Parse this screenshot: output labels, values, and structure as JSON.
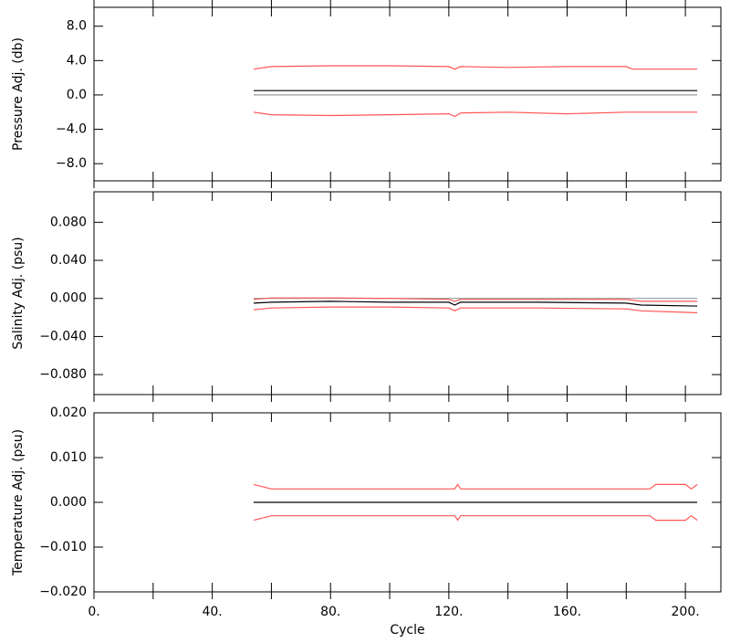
{
  "chart_data": [
    {
      "type": "line",
      "ylabel": "Pressure Adj. (db)",
      "xlim": [
        0,
        212
      ],
      "xticks": [
        0,
        20,
        40,
        60,
        80,
        100,
        120,
        140,
        160,
        180,
        200
      ],
      "ylim": [
        -10,
        10.2
      ],
      "yticks": [
        {
          "value": 8,
          "label": "8.0"
        },
        {
          "value": 4,
          "label": "4.0"
        },
        {
          "value": 0,
          "label": "0.0"
        },
        {
          "value": -4,
          "label": "−4.0"
        },
        {
          "value": -8,
          "label": "−8.0"
        }
      ],
      "x": [
        54,
        60,
        80,
        100,
        120,
        122,
        124,
        140,
        160,
        180,
        182,
        204
      ],
      "series": [
        {
          "color": "#999999",
          "values": [
            0,
            0,
            0,
            0,
            0,
            0,
            0,
            0,
            0,
            0,
            0,
            0
          ]
        },
        {
          "color": "#000000",
          "values": [
            0.5,
            0.5,
            0.5,
            0.5,
            0.5,
            0.5,
            0.5,
            0.5,
            0.5,
            0.5,
            0.5,
            0.5
          ]
        },
        {
          "color": "#ff5555",
          "values": [
            3.0,
            3.3,
            3.4,
            3.4,
            3.3,
            3.0,
            3.3,
            3.2,
            3.3,
            3.3,
            3.0,
            3.0
          ]
        },
        {
          "color": "#ff5555",
          "values": [
            -2.0,
            -2.3,
            -2.4,
            -2.3,
            -2.2,
            -2.5,
            -2.1,
            -2.0,
            -2.2,
            -2.0,
            -2.0,
            -2.0
          ]
        }
      ]
    },
    {
      "type": "line",
      "ylabel": "Salinity Adj. (psu)",
      "xlim": [
        0,
        212
      ],
      "xticks": [
        0,
        20,
        40,
        60,
        80,
        100,
        120,
        140,
        160,
        180,
        200
      ],
      "ylim": [
        -0.101,
        0.112
      ],
      "yticks": [
        {
          "value": 0.08,
          "label": "0.080"
        },
        {
          "value": 0.04,
          "label": "0.040"
        },
        {
          "value": 0,
          "label": "0.000"
        },
        {
          "value": -0.04,
          "label": "−0.040"
        },
        {
          "value": -0.08,
          "label": "−0.080"
        }
      ],
      "x": [
        54,
        60,
        80,
        100,
        120,
        122,
        124,
        150,
        180,
        185,
        204
      ],
      "series": [
        {
          "color": "#999999",
          "values": [
            0,
            0,
            0,
            0,
            0,
            0,
            0,
            0,
            0,
            0,
            0
          ]
        },
        {
          "color": "#000000",
          "values": [
            -0.005,
            -0.004,
            -0.003,
            -0.004,
            -0.004,
            -0.007,
            -0.004,
            -0.004,
            -0.005,
            -0.007,
            -0.008
          ]
        },
        {
          "color": "#ff5555",
          "values": [
            -0.001,
            0.0005,
            0.0005,
            0,
            -0.001,
            -0.003,
            -0.001,
            -0.001,
            -0.001,
            -0.003,
            -0.003
          ]
        },
        {
          "color": "#ff5555",
          "values": [
            -0.012,
            -0.01,
            -0.009,
            -0.009,
            -0.01,
            -0.013,
            -0.01,
            -0.01,
            -0.011,
            -0.013,
            -0.015
          ]
        }
      ]
    },
    {
      "type": "line",
      "ylabel": "Temperature Adj. (psu)",
      "xlabel": "Cycle",
      "xlim": [
        0,
        212
      ],
      "xticks": [
        {
          "value": 0,
          "label": "0."
        },
        {
          "value": 40,
          "label": "40."
        },
        {
          "value": 80,
          "label": "80."
        },
        {
          "value": 120,
          "label": "120."
        },
        {
          "value": 160,
          "label": "160."
        },
        {
          "value": 200,
          "label": "200."
        }
      ],
      "xminor_ticks": [
        20,
        60,
        100,
        140,
        180
      ],
      "ylim": [
        -0.02,
        0.02
      ],
      "yticks": [
        {
          "value": 0.02,
          "label": "0.020"
        },
        {
          "value": 0.01,
          "label": "0.010"
        },
        {
          "value": 0,
          "label": "0.000"
        },
        {
          "value": -0.01,
          "label": "−0.010"
        },
        {
          "value": -0.02,
          "label": "−0.020"
        }
      ],
      "x": [
        54,
        60,
        122,
        123,
        124,
        188,
        190,
        192,
        200,
        202,
        204
      ],
      "series": [
        {
          "color": "#000000",
          "values": [
            0,
            0,
            0,
            0,
            0,
            0,
            0,
            0,
            0,
            0,
            0
          ]
        },
        {
          "color": "#ff5555",
          "values": [
            0.004,
            0.003,
            0.003,
            0.004,
            0.003,
            0.003,
            0.004,
            0.004,
            0.004,
            0.003,
            0.004
          ]
        },
        {
          "color": "#ff5555",
          "values": [
            -0.004,
            -0.003,
            -0.003,
            -0.004,
            -0.003,
            -0.003,
            -0.004,
            -0.004,
            -0.004,
            -0.003,
            -0.004
          ]
        }
      ]
    }
  ]
}
